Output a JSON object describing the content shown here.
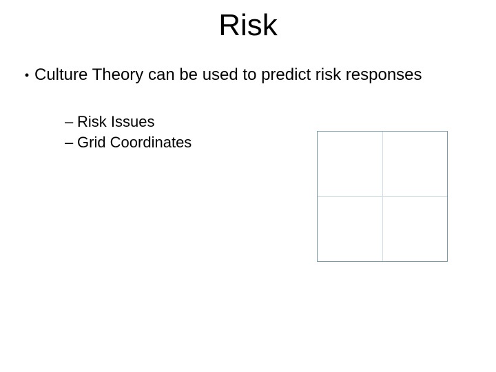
{
  "title": "Risk",
  "bullet": {
    "marker": "•",
    "text": "Culture Theory can be used to predict risk responses"
  },
  "sub_items": {
    "dash": "–",
    "item1": "Risk Issues",
    "item2": "Grid Coordinates"
  },
  "grid": {
    "type": "2x2-grid",
    "border_color": "#7a9aa8",
    "inner_line_color": "#cfe0e6",
    "background_color": "#ffffff"
  },
  "colors": {
    "page_background": "#ffffff",
    "text": "#000000"
  },
  "typography": {
    "title_fontsize": 44,
    "body_fontsize": 24,
    "sub_fontsize": 22,
    "font_family": "Arial"
  }
}
